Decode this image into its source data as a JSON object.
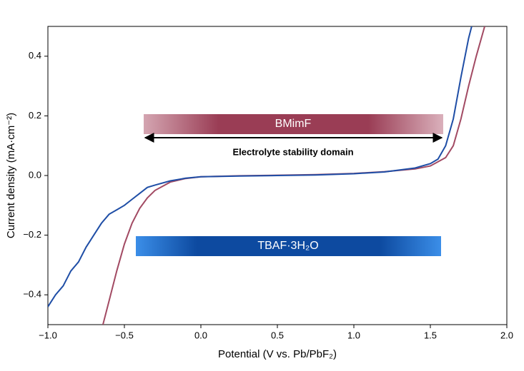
{
  "chart_data": {
    "type": "line",
    "xlabel": "Potential (V vs. Pb/PbF₂)",
    "ylabel": "Current density (mA·cm⁻²)",
    "annotation": "Electrolyte stability domain",
    "xlim": [
      -1.0,
      2.0
    ],
    "ylim": [
      -0.5,
      0.5
    ],
    "xticks": [
      {
        "value": -1.0,
        "label": "−1.0"
      },
      {
        "value": -0.5,
        "label": "−0.5"
      },
      {
        "value": 0.0,
        "label": "0.0"
      },
      0.5,
      {
        "value": 1.0,
        "label": "1.0"
      },
      1.5,
      {
        "value": 2.0,
        "label": "2.0"
      }
    ],
    "yticks": [
      {
        "value": -0.4,
        "label": "−0.4"
      },
      {
        "value": -0.2,
        "label": "−0.2"
      },
      {
        "value": 0.0,
        "label": "0.0"
      },
      0.2,
      0.4
    ],
    "series": [
      {
        "name": "BMimF",
        "color": "#a24a63",
        "x": [
          -0.64,
          -0.6,
          -0.55,
          -0.5,
          -0.45,
          -0.4,
          -0.35,
          -0.3,
          -0.2,
          -0.1,
          0,
          0.25,
          0.5,
          0.75,
          1.0,
          1.2,
          1.4,
          1.5,
          1.6,
          1.65,
          1.7,
          1.75,
          1.8,
          1.855
        ],
        "values": [
          -0.5,
          -0.42,
          -0.32,
          -0.23,
          -0.16,
          -0.11,
          -0.075,
          -0.05,
          -0.022,
          -0.01,
          -0.004,
          -0.001,
          0.001,
          0.003,
          0.007,
          0.013,
          0.022,
          0.032,
          0.06,
          0.1,
          0.19,
          0.3,
          0.4,
          0.5
        ]
      },
      {
        "name": "TBAF·3H₂O",
        "color": "#1f4ea6",
        "x": [
          -1.0,
          -0.95,
          -0.9,
          -0.85,
          -0.8,
          -0.75,
          -0.7,
          -0.65,
          -0.6,
          -0.55,
          -0.5,
          -0.45,
          -0.4,
          -0.35,
          -0.3,
          -0.2,
          -0.1,
          0,
          0.25,
          0.5,
          0.75,
          1.0,
          1.2,
          1.4,
          1.5,
          1.55,
          1.6,
          1.65,
          1.7,
          1.75,
          1.77
        ],
        "values": [
          -0.44,
          -0.4,
          -0.37,
          -0.32,
          -0.29,
          -0.24,
          -0.2,
          -0.16,
          -0.13,
          -0.115,
          -0.1,
          -0.08,
          -0.06,
          -0.04,
          -0.032,
          -0.018,
          -0.009,
          -0.004,
          -0.002,
          0,
          0.002,
          0.006,
          0.012,
          0.025,
          0.04,
          0.055,
          0.1,
          0.19,
          0.33,
          0.46,
          0.5
        ]
      }
    ]
  }
}
